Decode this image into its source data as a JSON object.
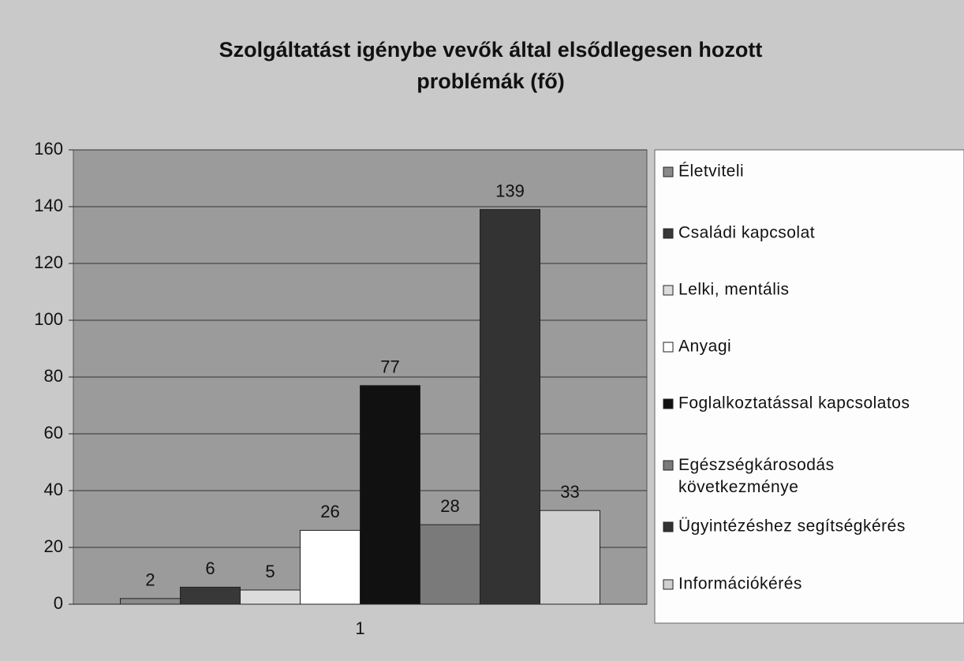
{
  "chart_data": {
    "type": "bar",
    "title": "Szolgáltatást igénybe vevők által elsődlegesen hozott problémák (fő)",
    "categories": [
      "1"
    ],
    "series": [
      {
        "name": "Életviteli",
        "color": "#8a8a8a",
        "values": [
          2
        ]
      },
      {
        "name": "Családi kapcsolat",
        "color": "#383838",
        "values": [
          6
        ]
      },
      {
        "name": "Lelki, mentális",
        "color": "#dcdcdc",
        "values": [
          5
        ]
      },
      {
        "name": "Anyagi",
        "color": "#ffffff",
        "values": [
          26
        ]
      },
      {
        "name": "Foglalkoztatással kapcsolatos",
        "color": "#111111",
        "values": [
          77
        ]
      },
      {
        "name": "Egészségkárosodás következménye",
        "color": "#7a7a7a",
        "values": [
          28
        ]
      },
      {
        "name": "Ügyintézéshez segítségkérés",
        "color": "#333333",
        "values": [
          139
        ]
      },
      {
        "name": "Információkérés",
        "color": "#cfcfcf",
        "values": [
          33
        ]
      }
    ],
    "ylim": [
      0,
      160
    ],
    "yticks": [
      0,
      20,
      40,
      60,
      80,
      100,
      120,
      140,
      160
    ],
    "grid": true,
    "legend": "right"
  }
}
